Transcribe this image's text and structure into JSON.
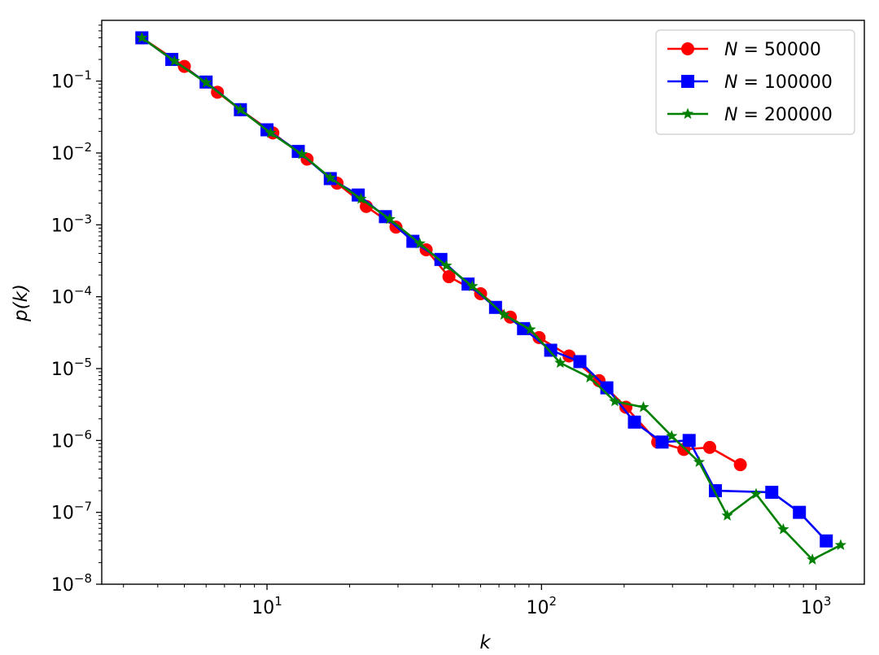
{
  "chart_data": {
    "type": "line",
    "xscale": "log",
    "yscale": "log",
    "xlabel": "k",
    "ylabel": "p(k)",
    "xlim": [
      2.5,
      1500
    ],
    "ylim": [
      1e-08,
      0.7
    ],
    "grid": false,
    "legend_position": "top-right",
    "x_ticks": [
      {
        "value": 10,
        "base": "10",
        "exp": "1"
      },
      {
        "value": 100,
        "base": "10",
        "exp": "2"
      },
      {
        "value": 1000,
        "base": "10",
        "exp": "3"
      }
    ],
    "y_ticks": [
      {
        "value": 1e-08,
        "base": "10",
        "exp": "−8"
      },
      {
        "value": 1e-07,
        "base": "10",
        "exp": "−7"
      },
      {
        "value": 1e-06,
        "base": "10",
        "exp": "−6"
      },
      {
        "value": 1e-05,
        "base": "10",
        "exp": "−5"
      },
      {
        "value": 0.0001,
        "base": "10",
        "exp": "−4"
      },
      {
        "value": 0.001,
        "base": "10",
        "exp": "−3"
      },
      {
        "value": 0.01,
        "base": "10",
        "exp": "−2"
      },
      {
        "value": 0.1,
        "base": "10",
        "exp": "−1"
      }
    ],
    "series": [
      {
        "name": "N = 50000",
        "legend_var": "N",
        "legend_value": "50000",
        "color": "#ff0000",
        "marker": "circle",
        "points": [
          [
            3.5,
            0.4
          ],
          [
            5.0,
            0.16
          ],
          [
            6.6,
            0.07
          ],
          [
            8.0,
            0.04
          ],
          [
            10.5,
            0.019
          ],
          [
            14.0,
            0.0082
          ],
          [
            18.0,
            0.0038
          ],
          [
            23.0,
            0.0018
          ],
          [
            29.5,
            0.00093
          ],
          [
            38.0,
            0.00045
          ],
          [
            46.0,
            0.00019
          ],
          [
            60.0,
            0.00011
          ],
          [
            77.0,
            5.2e-05
          ],
          [
            98.0,
            2.7e-05
          ],
          [
            126.0,
            1.5e-05
          ],
          [
            162.0,
            6.8e-06
          ],
          [
            203.0,
            2.9e-06
          ],
          [
            265.0,
            9.5e-07
          ],
          [
            330.0,
            7.5e-07
          ],
          [
            410.0,
            8e-07
          ],
          [
            530.0,
            4.6e-07
          ]
        ]
      },
      {
        "name": "N = 100000",
        "legend_var": "N",
        "legend_value": "100000",
        "color": "#0000ff",
        "marker": "square",
        "points": [
          [
            3.5,
            0.4
          ],
          [
            4.5,
            0.2
          ],
          [
            6.0,
            0.097
          ],
          [
            8.0,
            0.04
          ],
          [
            10.0,
            0.021
          ],
          [
            13.0,
            0.0105
          ],
          [
            17.0,
            0.0044
          ],
          [
            21.5,
            0.0026
          ],
          [
            27.0,
            0.0013
          ],
          [
            34.0,
            0.00059
          ],
          [
            43.0,
            0.00033
          ],
          [
            54.0,
            0.00015
          ],
          [
            68.0,
            7.1e-05
          ],
          [
            86.0,
            3.6e-05
          ],
          [
            108.0,
            1.8e-05
          ],
          [
            138.0,
            1.25e-05
          ],
          [
            173.0,
            5.4e-06
          ],
          [
            218.0,
            1.8e-06
          ],
          [
            275.0,
            9.5e-07
          ],
          [
            345.0,
            1e-06
          ],
          [
            430.0,
            2e-07
          ],
          [
            690.0,
            1.9e-07
          ],
          [
            870.0,
            1e-07
          ],
          [
            1090.0,
            4e-08
          ]
        ]
      },
      {
        "name": "N = 200000",
        "legend_var": "N",
        "legend_value": "200000",
        "color": "#008000",
        "marker": "star",
        "points": [
          [
            3.5,
            0.4
          ],
          [
            4.6,
            0.19
          ],
          [
            6.0,
            0.095
          ],
          [
            8.0,
            0.04
          ],
          [
            10.3,
            0.019
          ],
          [
            13.4,
            0.0096
          ],
          [
            17.0,
            0.0045
          ],
          [
            22.0,
            0.0023
          ],
          [
            28.0,
            0.0012
          ],
          [
            36.0,
            0.00055
          ],
          [
            45.0,
            0.00027
          ],
          [
            56.0,
            0.00014
          ],
          [
            73.0,
            5.6e-05
          ],
          [
            91.0,
            3.5e-05
          ],
          [
            117.0,
            1.2e-05
          ],
          [
            150.0,
            7.5e-06
          ],
          [
            185.0,
            3.5e-06
          ],
          [
            235.0,
            2.9e-06
          ],
          [
            298.0,
            1.15e-06
          ],
          [
            375.0,
            5e-07
          ],
          [
            475.0,
            9e-08
          ],
          [
            605.0,
            1.8e-07
          ],
          [
            760.0,
            5.8e-08
          ],
          [
            970.0,
            2.2e-08
          ],
          [
            1230.0,
            3.5e-08
          ]
        ]
      }
    ]
  }
}
